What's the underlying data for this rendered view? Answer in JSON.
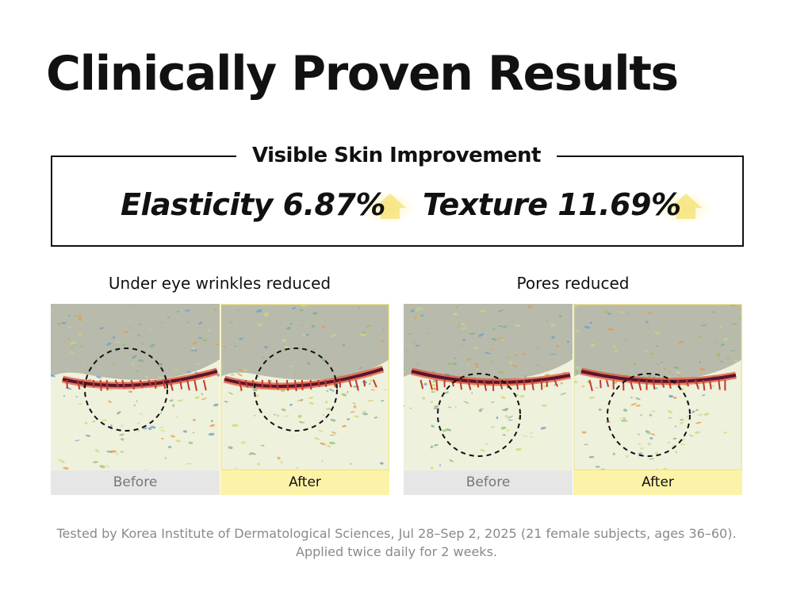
{
  "title": "Clinically Proven Results",
  "summary": {
    "heading": "Visible Skin Improvement",
    "metrics": [
      {
        "label": "Elasticity",
        "value": "6.87%"
      },
      {
        "label": "Texture",
        "value": "11.69%"
      }
    ]
  },
  "comparisons": [
    {
      "title": "Under eye wrinkles reduced",
      "before": "Before",
      "after": "After"
    },
    {
      "title": "Pores reduced",
      "before": "Before",
      "after": "After"
    }
  ],
  "footnote": [
    "Tested by Korea Institute of Dermatological Sciences, Jul 28–Sep 2, 2025 (21 female subjects, ages 36–60).",
    "Applied twice daily for 2 weeks."
  ]
}
